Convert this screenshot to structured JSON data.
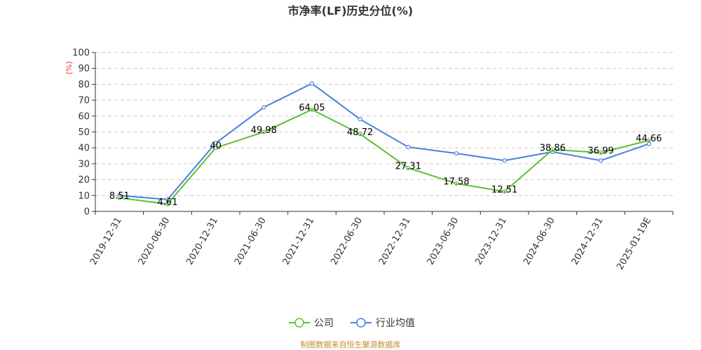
{
  "chart_data": {
    "type": "line",
    "title": "市净率(LF)历史分位(%)",
    "ylabel": "(%)",
    "ylim": [
      0,
      100
    ],
    "yticks": [
      0,
      10,
      20,
      30,
      40,
      50,
      60,
      70,
      80,
      90,
      100
    ],
    "categories": [
      "2019-12-31",
      "2020-06-30",
      "2020-12-31",
      "2021-06-30",
      "2021-12-31",
      "2022-06-30",
      "2022-12-31",
      "2023-06-30",
      "2023-12-31",
      "2024-06-30",
      "2024-12-31",
      "2025-01-19E"
    ],
    "grid": true,
    "legend_position": "bottom",
    "series": [
      {
        "name": "公司",
        "color": "#5cc02e",
        "values": [
          8.51,
          4.61,
          40,
          49.98,
          64.05,
          48.72,
          27.31,
          17.58,
          12.51,
          38.86,
          36.99,
          44.66
        ],
        "labels": [
          "8.51",
          "4.61",
          "40",
          "49.98",
          "64.05",
          "48.72",
          "27.31",
          "17.58",
          "12.51",
          "38.86",
          "36.99",
          "44.66"
        ]
      },
      {
        "name": "行业均值",
        "color": "#4a7fe0",
        "values": [
          10,
          7.5,
          43,
          65.5,
          80.5,
          58,
          40.5,
          36.5,
          32,
          37.5,
          32,
          42.5
        ]
      }
    ]
  },
  "source_text": "制图数据来自恒生聚源数据库"
}
